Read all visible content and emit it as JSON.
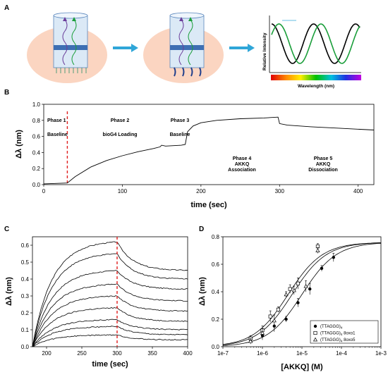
{
  "panels": {
    "a": "A",
    "b": "B",
    "c": "C",
    "d": "D"
  },
  "panel_a": {
    "ylabel": "Relative Intensity",
    "xlabel": "Wavelength (nm)",
    "colors": {
      "disc": "#fbd5c1",
      "arrow": "#2fa6d8",
      "sensor": "#3d6fb3",
      "green": "#1a9e3a",
      "black": "#000000"
    }
  },
  "chart_data": [
    {
      "type": "line",
      "ylabel": "Δλ (nm)",
      "xlabel": "time (sec)",
      "xlim": [
        0,
        420
      ],
      "ylim": [
        0,
        1.0
      ],
      "x_ticks": [
        0,
        100,
        200,
        300,
        400
      ],
      "y_ticks": [
        "0.0",
        "0.2",
        "0.4",
        "0.6",
        "0.8",
        "1.0"
      ],
      "marker_x": 30,
      "phases": [
        {
          "line1": "Phase 1",
          "line2": "",
          "line3": "",
          "line4": "Baseline"
        },
        {
          "line1": "Phase 2",
          "line2": "",
          "line3": "",
          "line4": "bioG4 Loading"
        },
        {
          "line1": "Phase 3",
          "line2": "",
          "line3": "",
          "line4": "Baseline"
        },
        {
          "line1": "Phase 4",
          "line2": "AKKQ",
          "line3": "Association",
          "line4": ""
        },
        {
          "line1": "Phase 5",
          "line2": "AKKQ",
          "line3": "Dissociation",
          "line4": ""
        }
      ],
      "trace": [
        [
          0,
          0.01
        ],
        [
          30,
          0.02
        ],
        [
          40,
          0.1
        ],
        [
          60,
          0.22
        ],
        [
          80,
          0.3
        ],
        [
          100,
          0.36
        ],
        [
          120,
          0.41
        ],
        [
          140,
          0.45
        ],
        [
          148,
          0.47
        ],
        [
          150,
          0.49
        ],
        [
          155,
          0.48
        ],
        [
          175,
          0.49
        ],
        [
          180,
          0.5
        ],
        [
          183,
          0.66
        ],
        [
          190,
          0.73
        ],
        [
          200,
          0.77
        ],
        [
          220,
          0.8
        ],
        [
          250,
          0.82
        ],
        [
          280,
          0.83
        ],
        [
          298,
          0.84
        ],
        [
          300,
          0.76
        ],
        [
          310,
          0.74
        ],
        [
          340,
          0.72
        ],
        [
          380,
          0.7
        ],
        [
          420,
          0.68
        ]
      ]
    },
    {
      "type": "line",
      "ylabel": "Δλ (nm)",
      "xlabel": "time (sec)",
      "xlim": [
        180,
        400
      ],
      "ylim": [
        0,
        0.65
      ],
      "x_ticks": [
        200,
        250,
        300,
        350,
        400
      ],
      "y_ticks": [
        "0.0",
        "0.1",
        "0.2",
        "0.3",
        "0.4",
        "0.5",
        "0.6"
      ],
      "marker_x": 300,
      "series": [
        {
          "peak": 0.62,
          "end": 0.45
        },
        {
          "peak": 0.55,
          "end": 0.4
        },
        {
          "peak": 0.45,
          "end": 0.34
        },
        {
          "peak": 0.37,
          "end": 0.27
        },
        {
          "peak": 0.3,
          "end": 0.21
        },
        {
          "peak": 0.23,
          "end": 0.15
        },
        {
          "peak": 0.16,
          "end": 0.1
        },
        {
          "peak": 0.12,
          "end": 0.07
        },
        {
          "peak": 0.07,
          "end": 0.04
        }
      ]
    },
    {
      "type": "scatter",
      "ylabel": "Δλ (nm)",
      "xlabel": "[AKKQ] (M)",
      "x_scale": "log",
      "xlim_log10": [
        -7,
        -3
      ],
      "ylim": [
        0,
        0.8
      ],
      "x_ticks": [
        {
          "label": "1e-7",
          "log10": -7
        },
        {
          "label": "1e-6",
          "log10": -6
        },
        {
          "label": "1e-5",
          "log10": -5
        },
        {
          "label": "1e-4",
          "log10": -4
        },
        {
          "label": "1e-3",
          "log10": -3
        }
      ],
      "y_ticks": [
        "0.0",
        "0.2",
        "0.4",
        "0.6",
        "0.8"
      ],
      "series": [
        {
          "name": "(TTAGGG)",
          "sub": "4",
          "suffix": "",
          "marker": "filled-circle",
          "x_log10": [
            -6.3,
            -6.0,
            -5.7,
            -5.4,
            -5.1,
            -4.8,
            -4.5,
            -4.2
          ],
          "y": [
            0.05,
            0.08,
            0.15,
            0.2,
            0.32,
            0.42,
            0.57,
            0.65
          ],
          "curve": {
            "ec50_log10": -5.0,
            "top": 0.76,
            "hill": 1.0
          }
        },
        {
          "name": "(TTAGGG)",
          "sub": "4",
          "suffix": " 8oxo1",
          "marker": "open-square",
          "x_log10": [
            -6.3,
            -6.0,
            -5.8,
            -5.6,
            -5.3,
            -5.1,
            -4.6
          ],
          "y": [
            0.06,
            0.12,
            0.22,
            0.27,
            0.42,
            0.46,
            0.73
          ],
          "curve": {
            "ec50_log10": -5.35,
            "top": 0.76,
            "hill": 1.0
          }
        },
        {
          "name": "(TTAGGG)",
          "sub": "4",
          "suffix": " 8oxo5",
          "marker": "open-triangle",
          "x_log10": [
            -6.3,
            -6.0,
            -5.7,
            -5.4,
            -5.2,
            -4.9,
            -4.6
          ],
          "y": [
            0.04,
            0.1,
            0.19,
            0.38,
            0.41,
            0.44,
            0.7
          ],
          "curve": {
            "ec50_log10": -5.25,
            "top": 0.76,
            "hill": 1.0
          }
        }
      ]
    }
  ]
}
